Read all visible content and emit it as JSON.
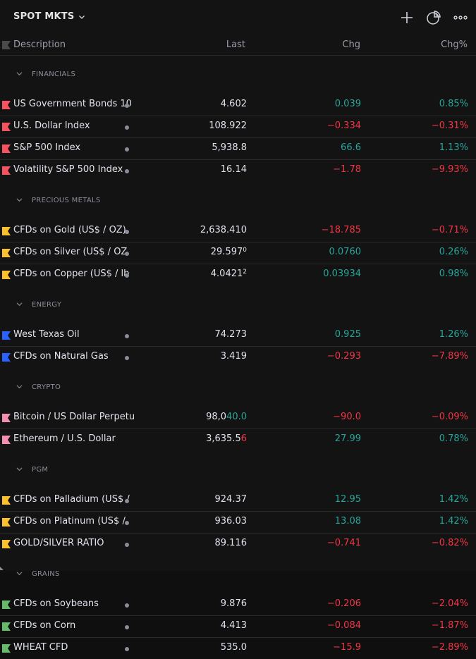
{
  "header": {
    "title": "SPOT MKTS",
    "icons": [
      "plus-icon",
      "pie-chart-icon",
      "more-icon"
    ]
  },
  "columns": {
    "description": "Description",
    "last": "Last",
    "chg": "Chg",
    "chg_pct": "Chg%"
  },
  "colors": {
    "up": "#26a69a",
    "down": "#f23645",
    "red_flag": "#f7525f",
    "yellow_flag": "#fbc02d",
    "blue_flag": "#2962ff",
    "pink_flag": "#f48fb1",
    "green_flag": "#66bb6a"
  },
  "sections": [
    {
      "label": "FINANCIALS",
      "rows": [
        {
          "description": "US Government Bonds 10",
          "last": "4.602",
          "chg": "0.039",
          "pct": "0.85%",
          "dir": "up",
          "flag": "red"
        },
        {
          "description": "U.S. Dollar Index",
          "last": "108.922",
          "chg": "−0.334",
          "pct": "−0.31%",
          "dir": "down",
          "flag": "red"
        },
        {
          "description": "S&P 500 Index",
          "last": "5,938.8",
          "chg": "66.6",
          "pct": "1.13%",
          "dir": "up",
          "flag": "red"
        },
        {
          "description": "Volatility S&P 500 Index",
          "last": "16.14",
          "chg": "−1.78",
          "pct": "−9.93%",
          "dir": "down",
          "flag": "red"
        }
      ]
    },
    {
      "label": "PRECIOUS METALS",
      "rows": [
        {
          "description": "CFDs on Gold (US$ / OZ)",
          "last": "2,638.410",
          "chg": "−18.785",
          "pct": "−0.71%",
          "dir": "down",
          "flag": "yellow"
        },
        {
          "description": "CFDs on Silver (US$ / OZ",
          "last": "29.597",
          "last_sup": "0",
          "chg": "0.0760",
          "pct": "0.26%",
          "dir": "up",
          "flag": "yellow"
        },
        {
          "description": "CFDs on Copper (US$ / lb",
          "last": "4.0421",
          "last_sup": "2",
          "chg": "0.03934",
          "pct": "0.98%",
          "dir": "up",
          "flag": "yellow"
        }
      ]
    },
    {
      "label": "ENERGY",
      "rows": [
        {
          "description": "West Texas Oil",
          "last": "74.273",
          "chg": "0.925",
          "pct": "1.26%",
          "dir": "up",
          "flag": "blue"
        },
        {
          "description": "CFDs on Natural Gas",
          "last": "3.419",
          "chg": "−0.293",
          "pct": "−7.89%",
          "dir": "down",
          "flag": "blue"
        }
      ]
    },
    {
      "label": "CRYPTO",
      "rows": [
        {
          "description": "Bitcoin / US Dollar Perpetu",
          "last_a": "98,0",
          "last_b": "40.0",
          "last_b_dir": "up",
          "chg": "−90.0",
          "pct": "−0.09%",
          "dir": "down",
          "flag": "pink",
          "nodot": true
        },
        {
          "description": "Ethereum / U.S. Dollar",
          "last_a": "3,635.5",
          "last_b": "6",
          "last_b_dir": "down",
          "chg": "27.99",
          "pct": "0.78%",
          "dir": "up",
          "flag": "pink",
          "nodot": true
        }
      ]
    },
    {
      "label": "PGM",
      "rows": [
        {
          "description": "CFDs on Palladium (US$ /",
          "last": "924.37",
          "chg": "12.95",
          "pct": "1.42%",
          "dir": "up",
          "flag": "yellow"
        },
        {
          "description": "CFDs on Platinum (US$ /",
          "last": "936.03",
          "chg": "13.08",
          "pct": "1.42%",
          "dir": "up",
          "flag": "yellow"
        },
        {
          "description": "GOLD/SILVER RATIO",
          "last": "89.116",
          "chg": "−0.741",
          "pct": "−0.82%",
          "dir": "down",
          "flag": "yellow"
        }
      ]
    },
    {
      "label": "GRAINS",
      "rows": [
        {
          "description": "CFDs on Soybeans",
          "last": "9.876",
          "chg": "−0.206",
          "pct": "−2.04%",
          "dir": "down",
          "flag": "green"
        },
        {
          "description": "CFDs on Corn",
          "last": "4.413",
          "chg": "−0.084",
          "pct": "−1.87%",
          "dir": "down",
          "flag": "green"
        },
        {
          "description": "WHEAT CFD",
          "last": "535.0",
          "chg": "−15.9",
          "pct": "−2.89%",
          "dir": "down",
          "flag": "green"
        }
      ]
    }
  ]
}
